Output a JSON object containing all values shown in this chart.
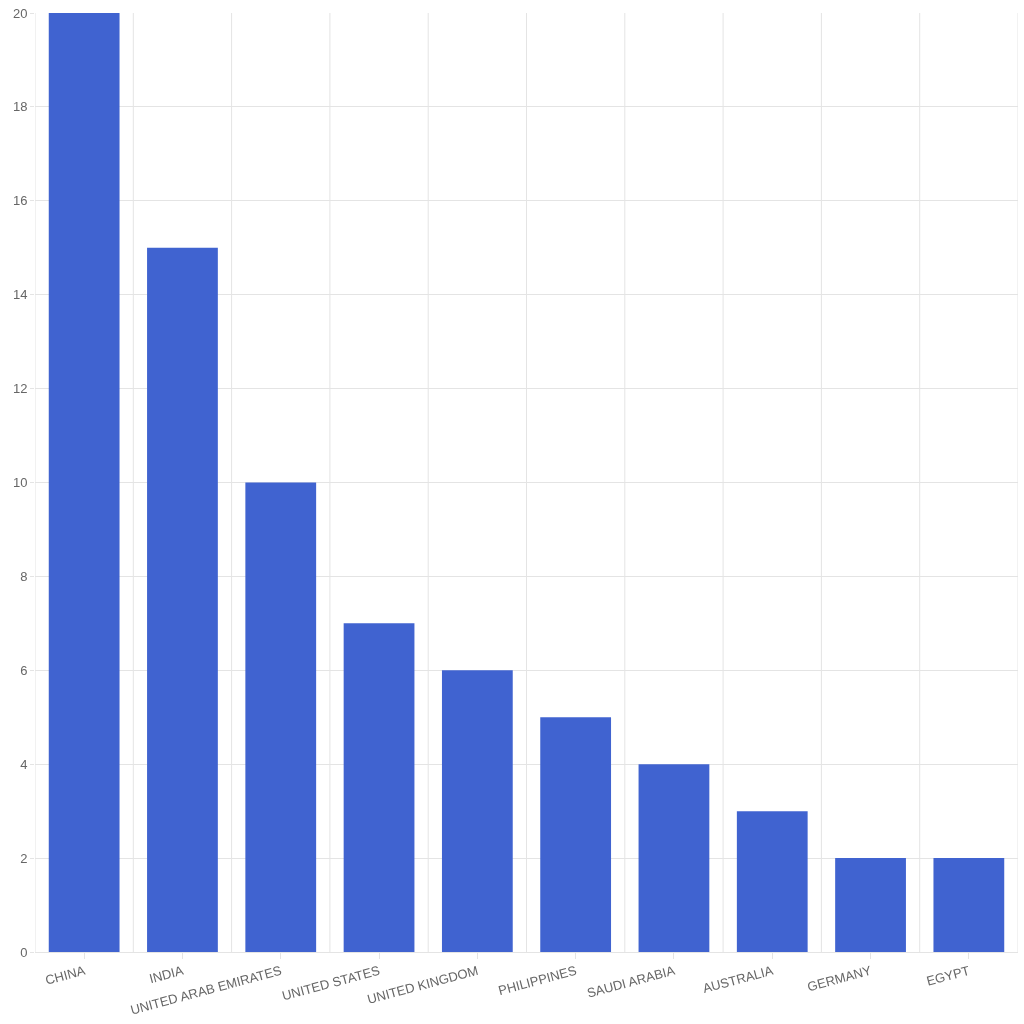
{
  "chart_data": {
    "type": "bar",
    "categories": [
      "CHINA",
      "INDIA",
      "UNITED ARAB EMIRATES",
      "UNITED STATES",
      "UNITED KINGDOM",
      "PHILIPPINES",
      "SAUDI ARABIA",
      "AUSTRALIA",
      "GERMANY",
      "EGYPT"
    ],
    "values": [
      20,
      15,
      10,
      7,
      6,
      5,
      4,
      3,
      2,
      2
    ],
    "color": "#4063d0",
    "ylim": [
      0,
      20
    ],
    "yticks": [
      0,
      2,
      4,
      6,
      8,
      10,
      12,
      14,
      16,
      18,
      20
    ],
    "grid": true
  }
}
